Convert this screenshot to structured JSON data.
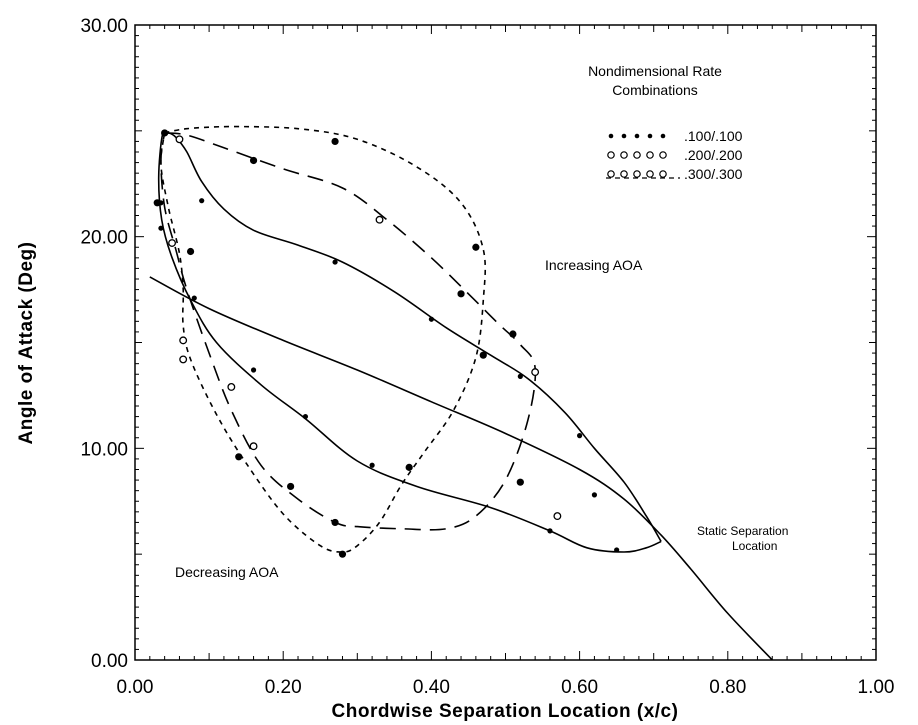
{
  "chart_data": {
    "type": "line",
    "title": "",
    "xlabel": "Chordwise Separation Location (x/c)",
    "ylabel": "Angle of Attack (Deg)",
    "xlim": [
      0,
      1
    ],
    "ylim": [
      0,
      30
    ],
    "x_ticks": [
      "0.00",
      "0.20",
      "0.40",
      "0.60",
      "0.80",
      "1.00"
    ],
    "y_ticks": [
      "0.00",
      "10.00",
      "20.00",
      "30.00"
    ],
    "grid": false,
    "legend": {
      "title": "Nondimensional Rate Combinations",
      "title_lines": [
        "Nondimensional Rate",
        "Combinations"
      ],
      "placement": "top-right",
      "entries": [
        ".100/.100",
        ".200/.200",
        ".300/.300"
      ]
    },
    "annotations": {
      "increasing": "Increasing AOA",
      "decreasing": "Decreasing AOA",
      "static_line1": "Static Separation",
      "static_line2": "Location"
    },
    "static_curve": {
      "x": [
        0.02,
        0.1,
        0.2,
        0.3,
        0.4,
        0.5,
        0.6,
        0.66,
        0.71,
        0.75,
        0.8,
        0.86
      ],
      "y": [
        18.1,
        16.6,
        15.1,
        13.7,
        12.2,
        10.7,
        9.0,
        7.6,
        5.9,
        4.3,
        2.2,
        0.0
      ]
    },
    "series": [
      {
        "name": ".100/.100",
        "style": "solid",
        "marker": "dot",
        "loop": [
          [
            0.71,
            5.6
          ],
          [
            0.69,
            6.8
          ],
          [
            0.66,
            8.4
          ],
          [
            0.62,
            10.0
          ],
          [
            0.58,
            11.7
          ],
          [
            0.53,
            13.3
          ],
          [
            0.48,
            14.4
          ],
          [
            0.42,
            15.7
          ],
          [
            0.35,
            17.4
          ],
          [
            0.28,
            18.8
          ],
          [
            0.22,
            19.6
          ],
          [
            0.16,
            20.3
          ],
          [
            0.12,
            21.3
          ],
          [
            0.09,
            22.6
          ],
          [
            0.07,
            24.0
          ],
          [
            0.055,
            24.7
          ],
          [
            0.045,
            24.9
          ],
          [
            0.037,
            24.8
          ],
          [
            0.032,
            22.8
          ],
          [
            0.036,
            20.8
          ],
          [
            0.05,
            19.0
          ],
          [
            0.075,
            17.0
          ],
          [
            0.11,
            15.0
          ],
          [
            0.17,
            13.0
          ],
          [
            0.23,
            11.4
          ],
          [
            0.3,
            9.4
          ],
          [
            0.38,
            8.2
          ],
          [
            0.48,
            7.2
          ],
          [
            0.56,
            6.1
          ],
          [
            0.61,
            5.3
          ],
          [
            0.66,
            5.1
          ],
          [
            0.69,
            5.3
          ],
          [
            0.71,
            5.6
          ]
        ],
        "markers": [
          [
            0.035,
            21.6
          ],
          [
            0.035,
            20.4
          ],
          [
            0.09,
            21.7
          ],
          [
            0.27,
            18.8
          ],
          [
            0.4,
            16.1
          ],
          [
            0.52,
            13.4
          ],
          [
            0.6,
            10.6
          ],
          [
            0.62,
            7.8
          ],
          [
            0.56,
            6.1
          ],
          [
            0.65,
            5.2
          ],
          [
            0.32,
            9.2
          ],
          [
            0.23,
            11.5
          ],
          [
            0.16,
            13.7
          ],
          [
            0.08,
            17.1
          ]
        ]
      },
      {
        "name": ".200/.200",
        "style": "long-dash",
        "marker": "open-circle",
        "loop": [
          [
            0.04,
            24.9
          ],
          [
            0.07,
            24.8
          ],
          [
            0.12,
            24.2
          ],
          [
            0.2,
            23.2
          ],
          [
            0.28,
            22.3
          ],
          [
            0.34,
            20.8
          ],
          [
            0.4,
            19.0
          ],
          [
            0.45,
            17.3
          ],
          [
            0.49,
            15.9
          ],
          [
            0.52,
            14.9
          ],
          [
            0.54,
            13.8
          ],
          [
            0.53,
            11.3
          ],
          [
            0.5,
            8.5
          ],
          [
            0.46,
            6.8
          ],
          [
            0.42,
            6.2
          ],
          [
            0.36,
            6.2
          ],
          [
            0.3,
            6.3
          ],
          [
            0.27,
            6.5
          ],
          [
            0.22,
            7.6
          ],
          [
            0.17,
            9.2
          ],
          [
            0.13,
            11.8
          ],
          [
            0.1,
            14.5
          ],
          [
            0.07,
            17.5
          ],
          [
            0.055,
            19.4
          ],
          [
            0.04,
            21.4
          ],
          [
            0.035,
            23.6
          ],
          [
            0.04,
            24.9
          ]
        ],
        "markers": [
          [
            0.06,
            24.6
          ],
          [
            0.33,
            20.8
          ],
          [
            0.54,
            13.6
          ],
          [
            0.05,
            19.7
          ],
          [
            0.065,
            15.1
          ],
          [
            0.065,
            14.2
          ],
          [
            0.13,
            12.9
          ],
          [
            0.16,
            10.1
          ],
          [
            0.57,
            6.8
          ]
        ]
      },
      {
        "name": ".300/.300",
        "style": "short-dash",
        "marker": "filled-dot",
        "loop": [
          [
            0.04,
            24.9
          ],
          [
            0.07,
            25.1
          ],
          [
            0.13,
            25.2
          ],
          [
            0.22,
            25.1
          ],
          [
            0.3,
            24.6
          ],
          [
            0.38,
            23.3
          ],
          [
            0.44,
            21.6
          ],
          [
            0.47,
            19.4
          ],
          [
            0.47,
            17.0
          ],
          [
            0.46,
            14.3
          ],
          [
            0.43,
            11.8
          ],
          [
            0.39,
            9.8
          ],
          [
            0.36,
            8.3
          ],
          [
            0.33,
            6.5
          ],
          [
            0.3,
            5.4
          ],
          [
            0.28,
            5.1
          ],
          [
            0.25,
            5.4
          ],
          [
            0.2,
            6.9
          ],
          [
            0.15,
            9.3
          ],
          [
            0.11,
            11.6
          ],
          [
            0.075,
            14.2
          ],
          [
            0.065,
            15.8
          ],
          [
            0.065,
            17.5
          ],
          [
            0.06,
            19.2
          ],
          [
            0.045,
            21.4
          ],
          [
            0.035,
            23.4
          ],
          [
            0.04,
            24.9
          ]
        ],
        "markers": [
          [
            0.04,
            24.9
          ],
          [
            0.16,
            23.6
          ],
          [
            0.27,
            24.5
          ],
          [
            0.46,
            19.5
          ],
          [
            0.44,
            17.3
          ],
          [
            0.51,
            15.4
          ],
          [
            0.47,
            14.4
          ],
          [
            0.37,
            9.1
          ],
          [
            0.52,
            8.4
          ],
          [
            0.28,
            5.0
          ],
          [
            0.27,
            6.5
          ],
          [
            0.21,
            8.2
          ],
          [
            0.14,
            9.6
          ],
          [
            0.075,
            19.3
          ],
          [
            0.03,
            21.6
          ]
        ]
      }
    ]
  }
}
